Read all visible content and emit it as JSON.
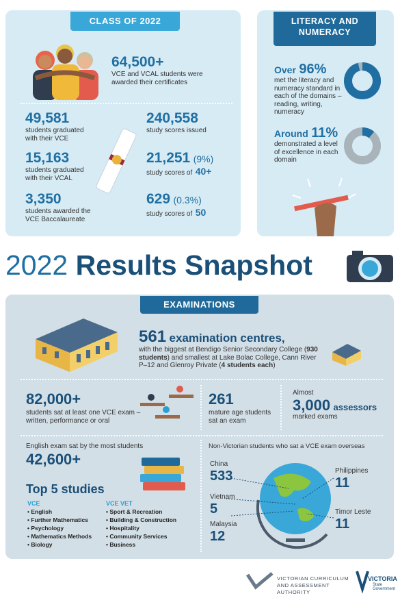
{
  "class_of_2022": {
    "title": "CLASS OF 2022",
    "certificates": {
      "value": "64,500+",
      "label": "VCE and VCAL students were awarded their certificates"
    },
    "stats": [
      {
        "value": "49,581",
        "label": "students graduated with their VCE"
      },
      {
        "value": "15,163",
        "label": "students graduated with their VCAL"
      },
      {
        "value": "3,350",
        "label": "students awarded the VCE Baccalaureate"
      }
    ],
    "scores": [
      {
        "value": "240,558",
        "label": "study scores issued"
      },
      {
        "value": "21,251",
        "percent": "(9%)",
        "label": "study scores of",
        "score": "40+"
      },
      {
        "value": "629",
        "percent": "(0.3%)",
        "label": "study scores of",
        "score": "50"
      }
    ]
  },
  "literacy": {
    "title": "LITERACY AND NUMERACY",
    "items": [
      {
        "prefix": "Over",
        "percent": {
          "value": 96,
          "label": "96%"
        },
        "text": "met the literacy and numeracy standard in each of the domains – reading, writing, numeracy"
      },
      {
        "prefix": "Around",
        "percent": {
          "value": 11,
          "label": "11%"
        },
        "text": "demonstrated a level of excellence in each domain"
      }
    ]
  },
  "title": {
    "year": "2022",
    "text": "Results Snapshot"
  },
  "examinations": {
    "title": "EXAMINATIONS",
    "centres": {
      "value": "561",
      "label": "examination centres,",
      "detail": [
        "with the biggest at Bendigo Senior Secondary College (",
        "930 students",
        ") and smallest at Lake Bolac College, Cann River P–12 and Glenroy Private (",
        "4 students each",
        ")"
      ]
    },
    "students": {
      "value": "82,000+",
      "label": "students sat at least one VCE exam – written, performance or oral"
    },
    "mature": {
      "value": "261",
      "label": "mature age students sat an exam"
    },
    "assessors": {
      "prefix": "Almost",
      "value": "3,000",
      "unit": "assessors",
      "label": "marked exams"
    },
    "english": {
      "label": "English exam sat by the most students",
      "value": "42,600+"
    },
    "top_studies": {
      "title": "Top 5 studies",
      "vce": {
        "heading": "VCE",
        "items": [
          "English",
          "Further Mathematics",
          "Psychology",
          "Mathematics Methods",
          "Biology"
        ]
      },
      "vce_vet": {
        "heading": "VCE VET",
        "items": [
          "Sport & Recreation",
          "Building & Construction",
          "Hospitality",
          "Community Services",
          "Business"
        ]
      }
    },
    "overseas": {
      "title": "Non-Victorian students who sat a VCE exam overseas",
      "countries": [
        {
          "name": "China",
          "value": "533"
        },
        {
          "name": "Vietnam",
          "value": "5"
        },
        {
          "name": "Malaysia",
          "value": "12"
        },
        {
          "name": "Philippines",
          "value": "11"
        },
        {
          "name": "Timor Leste",
          "value": "11"
        }
      ]
    }
  },
  "footer": {
    "vcaa": "VICTORIAN CURRICULUM AND ASSESSMENT AUTHORITY",
    "victoria": "VICTORIA",
    "government": "State Government"
  }
}
